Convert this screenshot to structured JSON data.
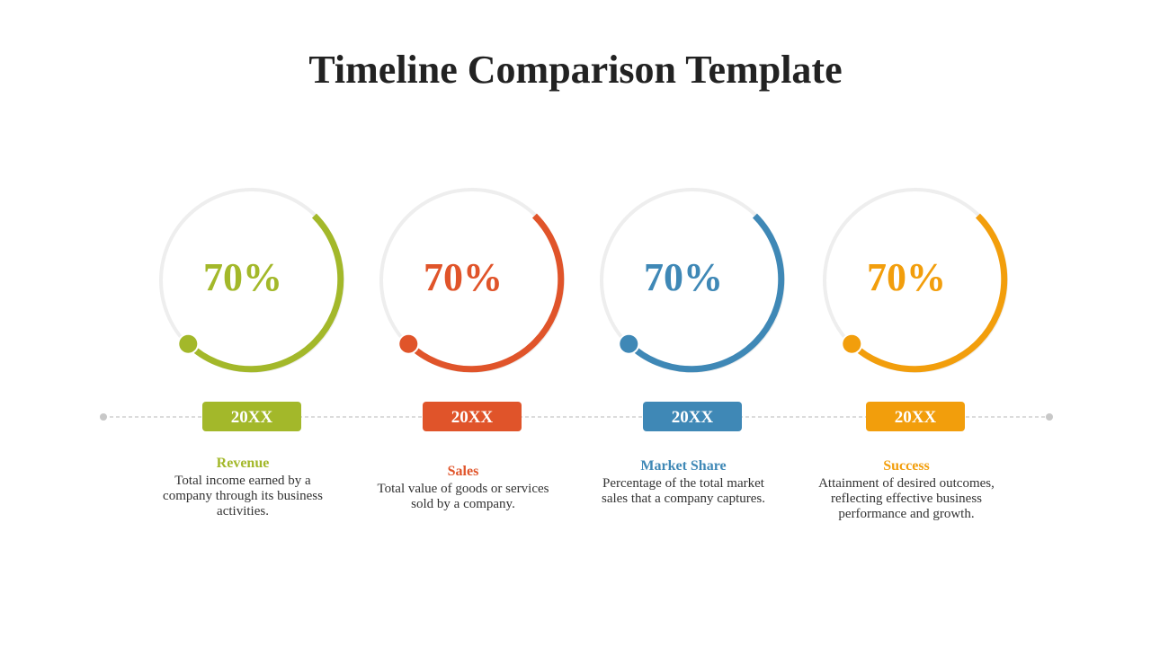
{
  "header": {
    "title": "Timeline Comparison Template"
  },
  "items": [
    {
      "percent": "70%",
      "year": "20XX",
      "title": "Revenue",
      "description": "Total income earned by a company through its business activities.",
      "color": "#a3b82a"
    },
    {
      "percent": "70%",
      "year": "20XX",
      "title": "Sales",
      "description": "Total value of goods or services sold by a company.",
      "color": "#e0542a"
    },
    {
      "percent": "70%",
      "year": "20XX",
      "title": "Market Share",
      "description": "Percentage of the total market sales that a company captures.",
      "color": "#3f88b6"
    },
    {
      "percent": "70%",
      "year": "20XX",
      "title": "Success",
      "description": "Attainment of desired outcomes, reflecting effective business performance and growth.",
      "color": "#f29e0c"
    }
  ]
}
